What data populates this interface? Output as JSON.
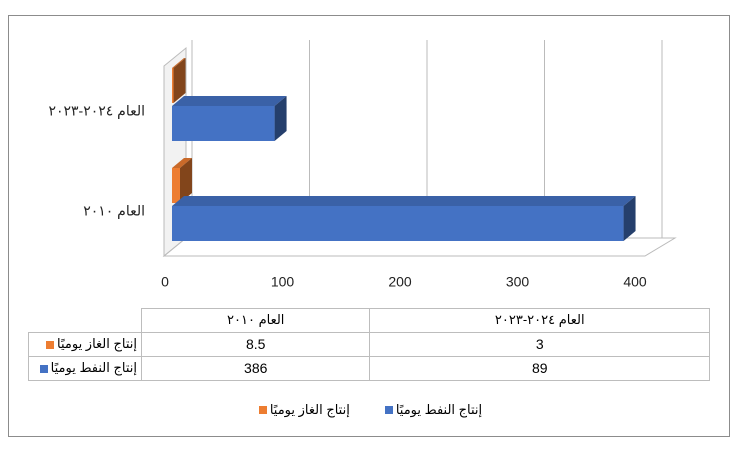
{
  "chart_data": {
    "type": "bar",
    "orientation": "horizontal",
    "categories": [
      "العام ٢٠١٠",
      "العام ٢٠٢٤-٢٠٢٣"
    ],
    "series": [
      {
        "name": "إنتاج الغاز يوميًا",
        "color": "#ED7D31",
        "values": [
          8.5,
          3
        ]
      },
      {
        "name": "إنتاج النفط يوميًا",
        "color": "#4472C4",
        "values": [
          386,
          89
        ]
      }
    ],
    "xlim": [
      0,
      400
    ],
    "xticks": [
      0,
      100,
      200,
      300,
      400
    ],
    "grid": true
  }
}
